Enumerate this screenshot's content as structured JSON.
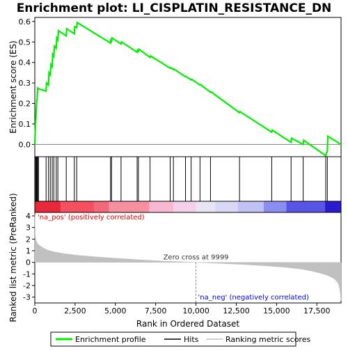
{
  "chart_data": {
    "type": "line",
    "title": "Enrichment plot: LI_CISPLATIN_RESISTANCE_DN",
    "xlabel": "Rank in Ordered Dataset",
    "ylabel_top": "Enrichment score (ES)",
    "ylabel_bottom": "Ranked list metric (PreRanked)",
    "x_range": [
      0,
      19000
    ],
    "es_ylim": [
      -0.06,
      0.62
    ],
    "metric_ylim": [
      -3.5,
      4.3
    ],
    "x_ticks": [
      0,
      2500,
      5000,
      7500,
      10000,
      12500,
      15000,
      17500
    ],
    "x_tick_labels": [
      "0",
      "2,500",
      "5,000",
      "7,500",
      "10,000",
      "12,500",
      "15,000",
      "17,500"
    ],
    "es_ticks": [
      0.0,
      0.1,
      0.2,
      0.3,
      0.4,
      0.5,
      0.6
    ],
    "es_tick_labels": [
      "0.0",
      "0.1",
      "0.2",
      "0.3",
      "0.4",
      "0.5",
      "0.6"
    ],
    "metric_ticks": [
      -3,
      -2,
      -1,
      0,
      1,
      2,
      3,
      4
    ],
    "metric_tick_labels": [
      "-3",
      "-2",
      "-1",
      "0",
      "1",
      "2",
      "3",
      "4"
    ],
    "es_profile": {
      "x": [
        0,
        40,
        60,
        90,
        110,
        150,
        180,
        230,
        700,
        730,
        850,
        880,
        960,
        1000,
        1080,
        1110,
        1180,
        1220,
        1330,
        1360,
        1430,
        1470,
        1950,
        1980,
        2450,
        2480,
        2600,
        2630,
        4700,
        4720,
        4760,
        4790,
        5350,
        5380,
        6350,
        6380,
        6430,
        6460,
        7150,
        7180,
        8400,
        8430,
        8600,
        8630,
        9350,
        9380,
        9700,
        9730,
        10250,
        10280,
        10900,
        10930,
        12700,
        12730,
        14700,
        14730,
        15900,
        15930,
        16650,
        16680,
        18050,
        18080,
        18150,
        18180,
        19000
      ],
      "y": [
        0.0,
        0.09,
        0.12,
        0.18,
        0.2,
        0.23,
        0.275,
        0.272,
        0.26,
        0.3,
        0.29,
        0.35,
        0.34,
        0.39,
        0.38,
        0.44,
        0.43,
        0.48,
        0.47,
        0.52,
        0.51,
        0.555,
        0.53,
        0.565,
        0.54,
        0.575,
        0.57,
        0.595,
        0.495,
        0.51,
        0.505,
        0.52,
        0.49,
        0.5,
        0.45,
        0.46,
        0.455,
        0.465,
        0.425,
        0.432,
        0.372,
        0.375,
        0.365,
        0.368,
        0.33,
        0.332,
        0.315,
        0.318,
        0.29,
        0.292,
        0.255,
        0.257,
        0.155,
        0.16,
        0.06,
        0.07,
        0.01,
        0.03,
        0.0,
        0.02,
        -0.055,
        -0.045,
        -0.035,
        0.04,
        0.0
      ]
    },
    "hits": [
      15,
      60,
      110,
      150,
      180,
      230,
      700,
      850,
      960,
      1080,
      1180,
      1330,
      1430,
      1950,
      2450,
      2600,
      4700,
      4760,
      5350,
      6350,
      6430,
      7150,
      8400,
      8600,
      9350,
      9700,
      10250,
      10900,
      12700,
      14700,
      15900,
      16650,
      18050,
      18150
    ],
    "heatmap_segments": [
      {
        "from": 0,
        "to": 1600,
        "color": "#e8293a"
      },
      {
        "from": 1600,
        "to": 3700,
        "color": "#f45060"
      },
      {
        "from": 3700,
        "to": 4600,
        "color": "#f26a7a"
      },
      {
        "from": 4600,
        "to": 7100,
        "color": "#f7909e"
      },
      {
        "from": 7100,
        "to": 8600,
        "color": "#f8b8d2"
      },
      {
        "from": 8600,
        "to": 9999,
        "color": "#f4d0ea"
      },
      {
        "from": 9999,
        "to": 11200,
        "color": "#e8e4f6"
      },
      {
        "from": 11200,
        "to": 12600,
        "color": "#d8d8f6"
      },
      {
        "from": 12600,
        "to": 14200,
        "color": "#c0c2f4"
      },
      {
        "from": 14200,
        "to": 15600,
        "color": "#8a8ef0"
      },
      {
        "from": 15600,
        "to": 18000,
        "color": "#5854e6"
      },
      {
        "from": 18000,
        "to": 19000,
        "color": "#2a1ad0"
      }
    ],
    "ranked_metric": {
      "x": [
        0,
        30,
        80,
        150,
        300,
        500,
        800,
        1200,
        1700,
        2500,
        3500,
        5000,
        6500,
        8000,
        9000,
        9999,
        11000,
        12500,
        14000,
        15500,
        16500,
        17200,
        17700,
        18100,
        18400,
        18600,
        18750,
        18850,
        18920,
        18960,
        19000
      ],
      "y": [
        4.1,
        2.3,
        1.9,
        1.65,
        1.45,
        1.25,
        1.05,
        0.9,
        0.78,
        0.63,
        0.5,
        0.35,
        0.22,
        0.1,
        0.05,
        0.0,
        -0.07,
        -0.15,
        -0.27,
        -0.42,
        -0.58,
        -0.75,
        -0.93,
        -1.1,
        -1.28,
        -1.45,
        -1.65,
        -1.9,
        -2.3,
        -2.8,
        -3.3
      ]
    },
    "zero_cross_x": 9999,
    "zero_cross_label": "Zero cross at 9999",
    "pos_label": "'na_pos' (positively correlated)",
    "neg_label": "'na_neg' (negatively correlated)",
    "legend": {
      "placement": "bottom",
      "items": [
        "Enrichment profile",
        "Hits",
        "Ranking metric scores"
      ]
    },
    "colors": {
      "profile": "#00ee00",
      "hits": "#000000",
      "metric_fill": "#c0c0c0",
      "pos_label": "#dd0000",
      "neg_label": "#0000dd",
      "zero_line": "#808080"
    }
  }
}
